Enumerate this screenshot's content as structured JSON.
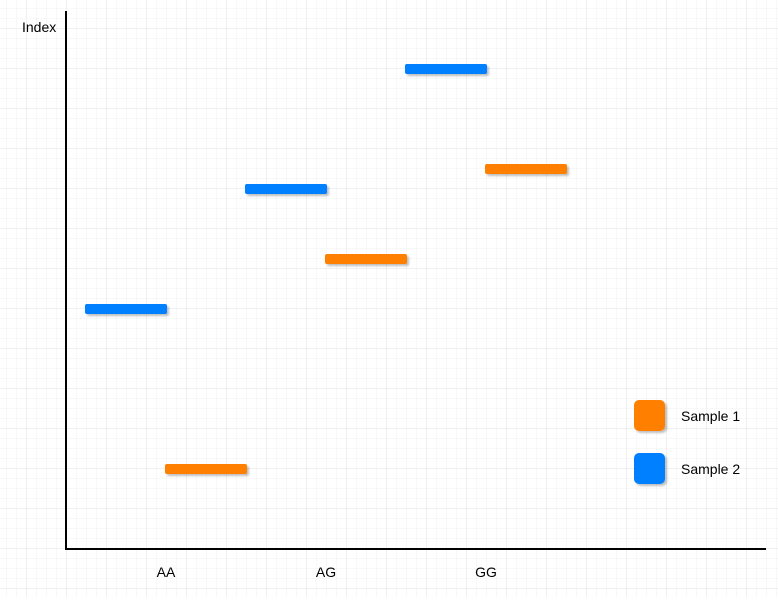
{
  "chart_data": {
    "type": "errorbar",
    "title": "",
    "xlabel": "",
    "ylabel": "Index",
    "categories": [
      "AA",
      "AG",
      "GG"
    ],
    "ylim": [
      0,
      54
    ],
    "grid": true,
    "legend_position": "bottom-right",
    "series": [
      {
        "name": "Sample 1",
        "color": "#FF8000",
        "mean": [
          8,
          29,
          38
        ],
        "low": [
          4,
          24,
          32
        ],
        "high": [
          12,
          34,
          45
        ]
      },
      {
        "name": "Sample 2",
        "color": "#007FFF",
        "mean": [
          24,
          36,
          48
        ],
        "low": [
          20,
          32,
          44
        ],
        "high": [
          28,
          40,
          52
        ]
      }
    ]
  }
}
